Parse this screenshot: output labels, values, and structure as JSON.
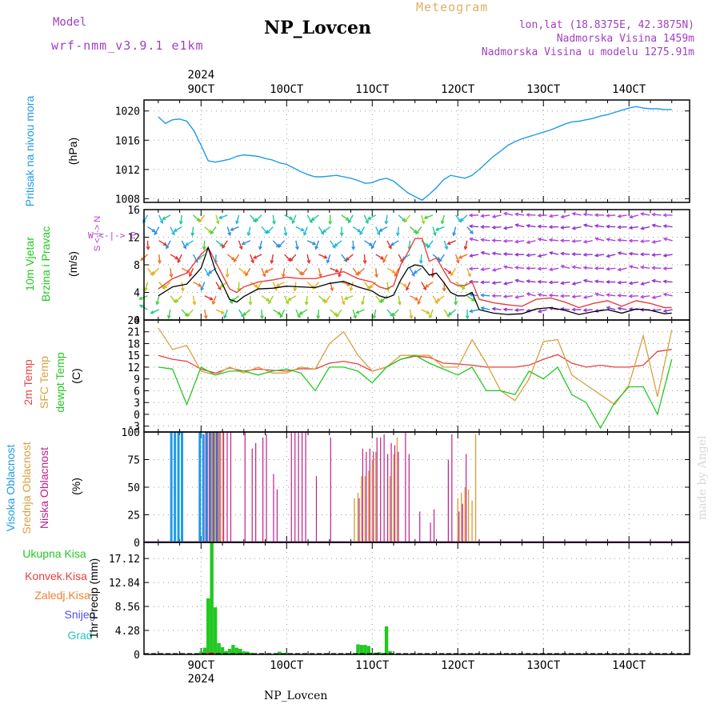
{
  "header": {
    "title": "NP_Lovcen",
    "model_label": "Model",
    "model_name": "wrf-nmm_v3.9.1  e1km",
    "meteogram_label": "Meteogram",
    "lonlat": "lon,lat (18.8375E, 42.3875N)",
    "altitude": "Nadmorska Visina 1459m",
    "model_altitude": "Nadmorska Visina u modelu 1275.91m"
  },
  "footer": {
    "station": "NP_Lovcen",
    "credit": "made by Angel"
  },
  "colors": {
    "pressure": "#1e9be8",
    "temp2m": "#e84040",
    "sfc_temp": "#d8a040",
    "dewpoint": "#22c822",
    "high_cloud": "#1e9be8",
    "mid_cloud": "#d8a040",
    "low_cloud": "#c0208a",
    "total_precip": "#22c822",
    "conv_precip": "#e84040",
    "freezing_precip": "#f08030",
    "snow": "#5050e0",
    "graupel": "#20c8b8",
    "wind_label": "#22c822",
    "wind_compass": "#b040d0"
  },
  "chart_data": [
    {
      "type": "line",
      "title": "Pritisak na nivou mora",
      "ylabel": "(hPa)",
      "x_ticks": [
        "9OCT",
        "10OCT",
        "11OCT",
        "12OCT",
        "13OCT",
        "14OCT"
      ],
      "x_year": "2024",
      "grid": true,
      "yticks": [
        1008,
        1012,
        1016,
        1020
      ],
      "ylim": [
        1007.5,
        1021.5
      ],
      "x_unit": "hours from 2024-10-08 12 UTC",
      "series": [
        {
          "name": "Pritisak na nivou mora",
          "x": [
            0,
            2,
            4,
            6,
            8,
            10,
            12,
            14,
            16,
            18,
            20,
            22,
            24,
            26,
            28,
            30,
            32,
            34,
            36,
            38,
            40,
            42,
            44,
            46,
            48,
            50,
            52,
            54,
            56,
            58,
            60,
            62,
            64,
            66,
            68,
            70,
            72,
            74,
            76,
            78,
            80,
            82,
            84,
            86,
            88,
            90,
            92,
            94,
            96,
            98,
            100,
            102,
            104,
            106,
            108,
            110,
            112,
            114,
            116,
            118,
            120,
            122,
            124,
            126,
            128,
            130,
            132,
            134,
            136,
            138,
            140,
            142,
            144
          ],
          "values": [
            1019.2,
            1018.3,
            1018.8,
            1018.9,
            1018.6,
            1017.3,
            1015.3,
            1013.2,
            1013.0,
            1013.2,
            1013.4,
            1013.8,
            1014.0,
            1013.9,
            1013.8,
            1013.5,
            1013.3,
            1012.9,
            1012.7,
            1012.2,
            1011.7,
            1011.3,
            1011.0,
            1011.0,
            1011.1,
            1011.2,
            1011.0,
            1010.8,
            1010.5,
            1010.1,
            1010.2,
            1010.6,
            1010.8,
            1010.4,
            1009.6,
            1008.8,
            1008.3,
            1007.8,
            1008.6,
            1009.5,
            1010.6,
            1011.2,
            1011.0,
            1010.8,
            1011.2,
            1012.0,
            1012.9,
            1013.8,
            1014.5,
            1015.3,
            1015.8,
            1016.2,
            1016.5,
            1016.8,
            1017.1,
            1017.4,
            1017.8,
            1018.2,
            1018.5,
            1018.6,
            1018.8,
            1019.0,
            1019.3,
            1019.5,
            1019.8,
            1020.1,
            1020.4,
            1020.6,
            1020.4,
            1020.3,
            1020.3,
            1020.2,
            1020.2
          ]
        }
      ]
    },
    {
      "type": "line",
      "title": "10m Vjetar Brzina i Pravac",
      "ylabel": "(m/s)",
      "compass_label": "W <-|-> E",
      "compass_vertical": "S <-|-> N",
      "grid": true,
      "yticks": [
        0,
        4,
        8,
        12,
        16
      ],
      "ylim": [
        0,
        16
      ],
      "x_unit": "hours from 2024-10-08 12 UTC",
      "series": [
        {
          "name": "speed",
          "x": [
            0,
            4,
            8,
            12,
            14,
            16,
            18,
            20,
            22,
            24,
            28,
            32,
            36,
            40,
            44,
            48,
            52,
            56,
            60,
            62,
            64,
            66,
            68,
            70,
            72,
            74,
            76,
            78,
            80,
            82,
            84,
            86,
            88,
            90,
            94,
            98,
            102,
            106,
            110,
            114,
            118,
            122,
            126,
            130,
            134,
            138,
            142,
            144
          ],
          "values": [
            3.5,
            4.8,
            5.2,
            7.5,
            10.5,
            7.2,
            5.2,
            3.0,
            2.6,
            3.4,
            4.5,
            4.6,
            4.9,
            4.8,
            4.7,
            5.3,
            5.6,
            4.8,
            4.2,
            3.5,
            3.2,
            3.6,
            5.8,
            7.5,
            8.0,
            7.8,
            6.5,
            6.8,
            5.5,
            4.0,
            3.5,
            3.5,
            4.0,
            1.5,
            1.0,
            0.8,
            0.9,
            1.6,
            1.8,
            1.4,
            0.8,
            1.2,
            1.5,
            1.0,
            1.6,
            1.4,
            0.9,
            1.0
          ]
        },
        {
          "name": "gust",
          "x": [
            0,
            4,
            8,
            12,
            14,
            16,
            18,
            20,
            22,
            24,
            28,
            32,
            36,
            40,
            44,
            48,
            52,
            56,
            60,
            62,
            64,
            66,
            68,
            70,
            72,
            74,
            76,
            78,
            80,
            82,
            84,
            86,
            88,
            90,
            94,
            98,
            102,
            106,
            110,
            114,
            118,
            122,
            126,
            130,
            134,
            138,
            142,
            144
          ],
          "values": [
            4.5,
            6.0,
            6.8,
            9.5,
            10.5,
            8.5,
            6.5,
            4.5,
            4.0,
            4.8,
            5.5,
            5.8,
            6.2,
            6.0,
            6.0,
            6.5,
            7.0,
            6.0,
            5.5,
            4.8,
            4.5,
            5.0,
            8.0,
            9.8,
            11.8,
            11.8,
            8.5,
            9.0,
            7.2,
            5.5,
            5.0,
            5.0,
            5.5,
            3.0,
            2.5,
            2.2,
            2.0,
            3.0,
            3.2,
            2.6,
            1.8,
            2.4,
            2.8,
            2.0,
            2.8,
            2.4,
            1.8,
            1.8
          ]
        }
      ]
    },
    {
      "type": "line",
      "ylabel": "(C)",
      "grid": true,
      "yticks": [
        -3,
        0,
        3,
        6,
        9,
        12,
        15,
        18,
        21,
        24
      ],
      "ylim": [
        -4.5,
        24
      ],
      "x_unit": "hours from 2024-10-08 12 UTC",
      "series": [
        {
          "name": "2m Temp",
          "x": [
            0,
            4,
            8,
            12,
            16,
            20,
            24,
            28,
            32,
            36,
            40,
            44,
            48,
            52,
            56,
            60,
            64,
            68,
            72,
            76,
            80,
            84,
            88,
            92,
            96,
            100,
            104,
            108,
            112,
            116,
            120,
            124,
            128,
            132,
            136,
            140,
            144
          ],
          "values": [
            15.0,
            14.0,
            13.5,
            11.5,
            10.5,
            11.8,
            11.0,
            11.5,
            11.2,
            11.0,
            11.6,
            11.5,
            13.0,
            13.5,
            12.8,
            11.0,
            12.0,
            14.0,
            14.8,
            14.5,
            13.0,
            12.8,
            12.5,
            12.0,
            12.0,
            12.0,
            12.5,
            14.0,
            15.2,
            13.0,
            12.0,
            12.5,
            12.0,
            12.0,
            12.5,
            16.0,
            16.5
          ]
        },
        {
          "name": "SFC Temp",
          "x": [
            0,
            4,
            8,
            12,
            16,
            20,
            24,
            28,
            32,
            36,
            40,
            44,
            48,
            52,
            56,
            60,
            64,
            68,
            72,
            76,
            80,
            84,
            88,
            92,
            96,
            100,
            104,
            108,
            112,
            116,
            120,
            124,
            128,
            132,
            136,
            140,
            144
          ],
          "values": [
            22.0,
            16.5,
            17.5,
            11.0,
            10.0,
            12.0,
            10.5,
            12.0,
            10.5,
            10.5,
            12.0,
            11.5,
            18.0,
            21.0,
            15.0,
            11.0,
            12.0,
            15.0,
            15.0,
            15.0,
            12.0,
            12.0,
            19.0,
            13.0,
            6.0,
            3.5,
            9.0,
            18.5,
            19.0,
            10.0,
            7.5,
            5.0,
            2.5,
            7.5,
            20.0,
            4.5,
            21.5
          ]
        },
        {
          "name": "dewpt Temp",
          "x": [
            0,
            4,
            8,
            12,
            16,
            20,
            24,
            28,
            32,
            36,
            40,
            44,
            48,
            52,
            56,
            60,
            64,
            68,
            72,
            76,
            80,
            84,
            88,
            92,
            96,
            100,
            104,
            108,
            112,
            116,
            120,
            124,
            128,
            132,
            136,
            140,
            144
          ],
          "values": [
            12.0,
            11.5,
            2.5,
            12.0,
            10.0,
            11.0,
            11.0,
            10.0,
            11.0,
            11.5,
            10.5,
            6.0,
            12.0,
            12.0,
            11.0,
            8.0,
            12.0,
            14.0,
            15.0,
            13.0,
            11.5,
            10.0,
            12.0,
            6.0,
            6.0,
            5.0,
            11.0,
            9.0,
            12.0,
            5.0,
            3.0,
            -3.5,
            3.0,
            7.0,
            7.0,
            0.0,
            14.0
          ]
        }
      ]
    },
    {
      "type": "bar",
      "ylabel": "(%)",
      "grid": true,
      "yticks": [
        0,
        25,
        50,
        75,
        100
      ],
      "ylim": [
        0,
        100
      ],
      "x_unit": "hours from 2024-10-08 12 UTC",
      "series": [
        {
          "name": "Visoka Oblacnost",
          "x": [
            4,
            5,
            6,
            7,
            12,
            13,
            14,
            15,
            16,
            17
          ],
          "values": [
            100,
            100,
            100,
            100,
            100,
            98,
            100,
            100,
            100,
            100
          ]
        },
        {
          "name": "Srednja Oblacnost",
          "x": [
            15,
            16,
            17,
            18,
            55,
            56,
            57,
            58,
            59,
            60,
            61,
            65,
            66,
            67,
            84,
            85,
            86,
            87,
            88,
            89
          ],
          "values": [
            100,
            100,
            100,
            100,
            40,
            45,
            60,
            60,
            65,
            75,
            82,
            60,
            80,
            95,
            40,
            45,
            50,
            48,
            38,
            98
          ]
        },
        {
          "name": "Niska Oblacnost",
          "x": [
            13,
            14,
            15,
            16,
            17,
            18,
            19,
            20,
            24,
            26,
            27,
            29,
            30,
            32,
            33,
            37,
            38,
            39,
            40,
            41,
            44,
            48,
            56,
            57,
            58,
            59,
            60,
            61,
            62,
            63,
            64,
            65,
            66,
            67,
            69,
            70,
            73,
            76,
            77,
            81,
            82,
            84,
            85,
            86
          ],
          "values": [
            100,
            100,
            100,
            100,
            100,
            100,
            100,
            100,
            100,
            85,
            90,
            95,
            98,
            62,
            48,
            100,
            100,
            100,
            100,
            100,
            60,
            95,
            40,
            85,
            82,
            85,
            82,
            95,
            95,
            98,
            80,
            90,
            88,
            82,
            100,
            80,
            28,
            18,
            30,
            75,
            98,
            28,
            35,
            80
          ]
        }
      ]
    },
    {
      "type": "bar",
      "ylabel": "1hr Precip (mm)",
      "grid": true,
      "yticks": [
        0,
        4.28,
        8.56,
        12.84,
        17.12
      ],
      "ylim": [
        0,
        20
      ],
      "x_unit": "hours from 2024-10-08 12 UTC",
      "series": [
        {
          "name": "Ukupna Kisa",
          "x": [
            12,
            13,
            14,
            15,
            16,
            17,
            18,
            19,
            20,
            21,
            22,
            23,
            24,
            25,
            26,
            34,
            36,
            56,
            57,
            58,
            59,
            60,
            61,
            62,
            63,
            64,
            65
          ],
          "values": [
            0.5,
            1.2,
            10.0,
            20.1,
            8.4,
            2.0,
            1.3,
            0.6,
            1.0,
            1.7,
            1.2,
            1.0,
            0.5,
            0.5,
            0.3,
            0.5,
            0.3,
            1.8,
            1.7,
            1.7,
            1.5,
            0.3,
            0.3,
            0.4,
            0.2,
            5.0,
            0.6
          ]
        },
        {
          "name": "Konvek.Kisa",
          "x": [
            14,
            15,
            16
          ],
          "values": [
            0.3,
            0.4,
            0.2
          ]
        },
        {
          "name": "Zaledj.Kisa",
          "x": [],
          "values": []
        },
        {
          "name": "Snijeg",
          "x": [],
          "values": []
        },
        {
          "name": "Grad",
          "x": [],
          "values": []
        }
      ]
    }
  ]
}
